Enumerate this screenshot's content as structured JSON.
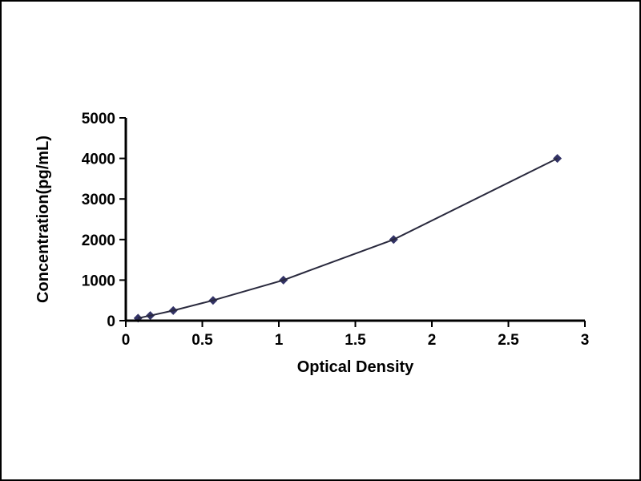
{
  "page": {
    "background_color": "#ffffff",
    "border_color": "#000000"
  },
  "chart_data": {
    "type": "line",
    "title": "",
    "xlabel": "Optical Density",
    "ylabel": "Concentration(pg/mL)",
    "x": [
      0.08,
      0.16,
      0.31,
      0.57,
      1.03,
      1.75,
      2.82
    ],
    "y": [
      62.5,
      125,
      250,
      500,
      1000,
      2000,
      4000
    ],
    "xlim": [
      0,
      3
    ],
    "ylim": [
      0,
      5000
    ],
    "x_ticks": [
      0,
      0.5,
      1,
      1.5,
      2,
      2.5,
      3
    ],
    "y_ticks": [
      0,
      1000,
      2000,
      3000,
      4000,
      5000
    ],
    "grid": false,
    "legend": false,
    "marker": "diamond",
    "line_color": "#29293d",
    "marker_color": "#333366",
    "axis_color": "#000000"
  }
}
